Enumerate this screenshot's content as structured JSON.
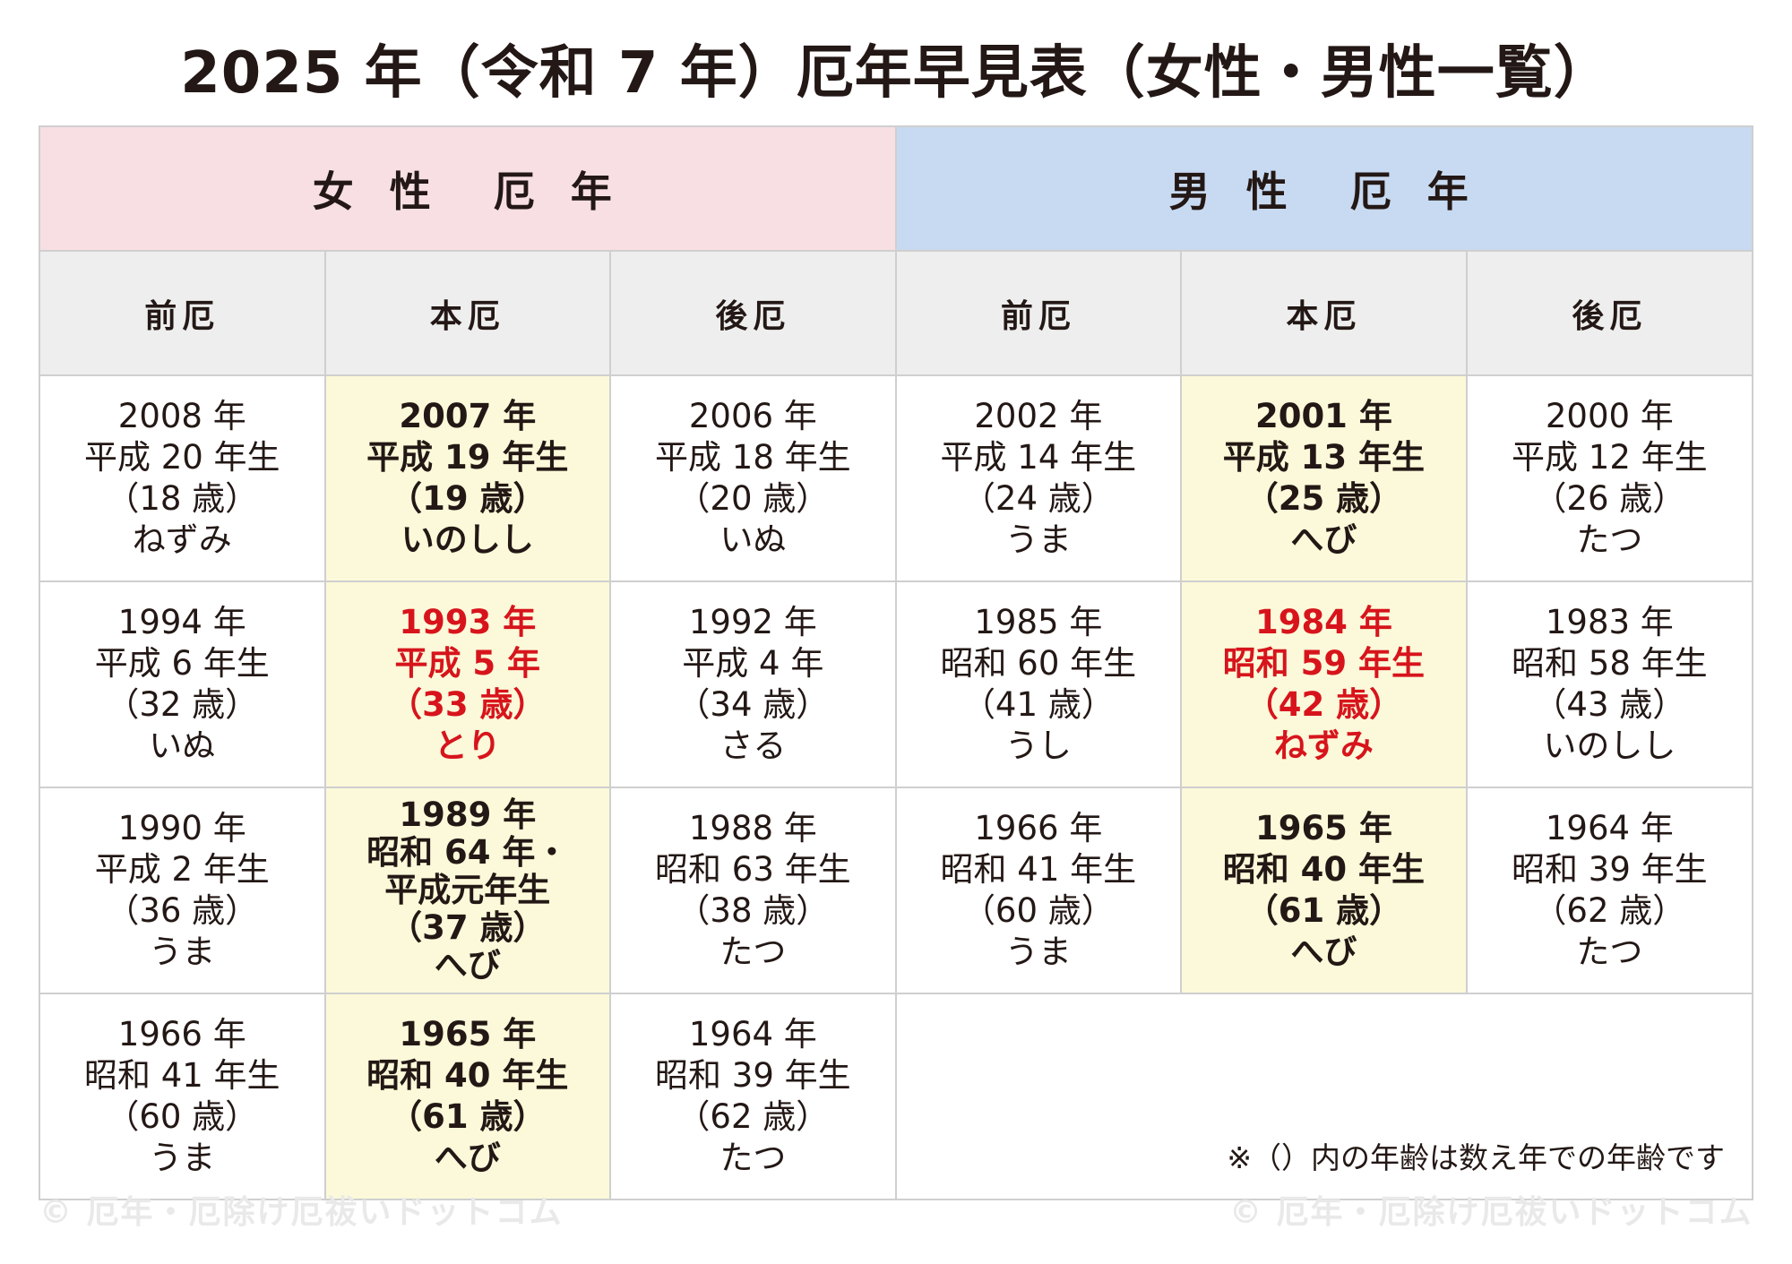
{
  "title": "2025 年（令和 7 年）厄年早見表（女性・男性一覧）",
  "headers": {
    "female": "女 性　厄 年",
    "male": "男 性　厄 年",
    "types": [
      "前厄",
      "本厄",
      "後厄",
      "前厄",
      "本厄",
      "後厄"
    ]
  },
  "rows": [
    [
      {
        "lines": [
          "2008 年",
          "平成 20 年生",
          "（18 歳）",
          "ねずみ"
        ]
      },
      {
        "lines": [
          "2007 年",
          "平成 19 年生",
          "（19 歳）",
          "いのしし"
        ]
      },
      {
        "lines": [
          "2006 年",
          "平成 18 年生",
          "（20 歳）",
          "いぬ"
        ]
      },
      {
        "lines": [
          "2002 年",
          "平成 14 年生",
          "（24 歳）",
          "うま"
        ]
      },
      {
        "lines": [
          "2001 年",
          "平成 13 年生",
          "（25 歳）",
          "へび"
        ]
      },
      {
        "lines": [
          "2000 年",
          "平成 12 年生",
          "（26 歳）",
          "たつ"
        ]
      }
    ],
    [
      {
        "lines": [
          "1994 年",
          "平成 6 年生",
          "（32 歳）",
          "いぬ"
        ]
      },
      {
        "lines": [
          "1993 年",
          "平成 5 年",
          "（33 歳）",
          "とり"
        ]
      },
      {
        "lines": [
          "1992 年",
          "平成 4 年",
          "（34 歳）",
          "さる"
        ]
      },
      {
        "lines": [
          "1985 年",
          "昭和 60 年生",
          "（41 歳）",
          "うし"
        ]
      },
      {
        "lines": [
          "1984 年",
          "昭和 59 年生",
          "（42 歳）",
          "ねずみ"
        ]
      },
      {
        "lines": [
          "1983 年",
          "昭和 58 年生",
          "（43 歳）",
          "いのしし"
        ]
      }
    ],
    [
      {
        "lines": [
          "1990 年",
          "平成 2 年生",
          "（36 歳）",
          "うま"
        ]
      },
      {
        "lines": [
          "1989 年",
          "昭和 64 年・",
          "平成元年生",
          "（37 歳）",
          "へび"
        ]
      },
      {
        "lines": [
          "1988 年",
          "昭和 63 年生",
          "（38 歳）",
          "たつ"
        ]
      },
      {
        "lines": [
          "1966 年",
          "昭和 41 年生",
          "（60 歳）",
          "うま"
        ]
      },
      {
        "lines": [
          "1965 年",
          "昭和 40 年生",
          "（61 歳）",
          "へび"
        ]
      },
      {
        "lines": [
          "1964 年",
          "昭和 39 年生",
          "（62 歳）",
          "たつ"
        ]
      }
    ],
    [
      {
        "lines": [
          "1966 年",
          "昭和 41 年生",
          "（60 歳）",
          "うま"
        ]
      },
      {
        "lines": [
          "1965 年",
          "昭和 40 年生",
          "（61 歳）",
          "へび"
        ]
      },
      {
        "lines": [
          "1964 年",
          "昭和 39 年生",
          "（62 歳）",
          "たつ"
        ]
      }
    ]
  ],
  "note": "※（）内の年齢は数え年での年齢です",
  "watermark": "© 厄年・厄除け厄祓いドットコム",
  "colors": {
    "female_header": "#f7dfe3",
    "male_header": "#c8daf1",
    "type_header": "#eeeeee",
    "honyaku_cell": "#fbf9d9",
    "highlight_text": "#d7141c"
  }
}
